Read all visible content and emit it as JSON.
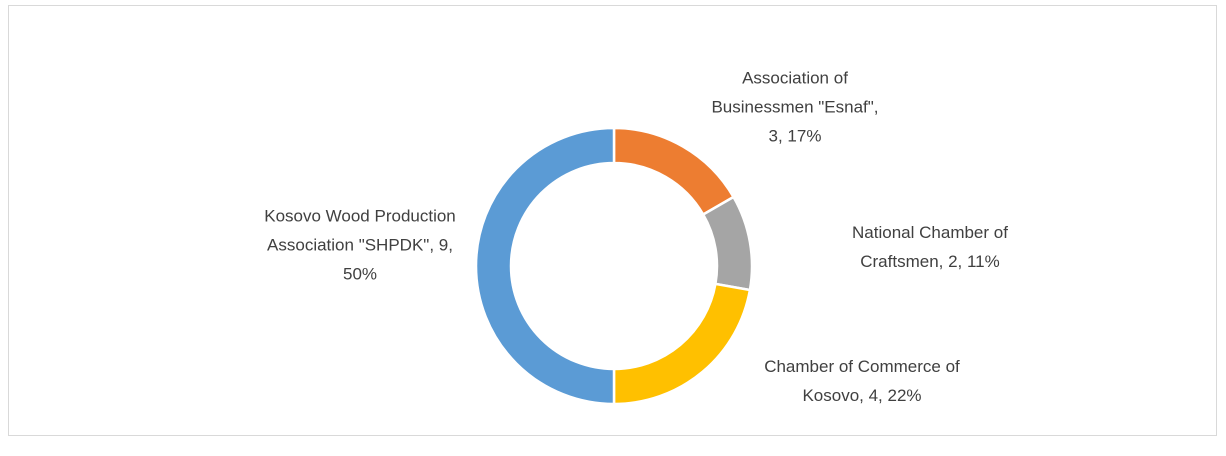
{
  "chart_data": {
    "type": "donut",
    "categories": [
      "Association of Businessmen \"Esnaf\"",
      "National Chamber of Craftsmen",
      "Chamber of Commerce of Kosovo",
      "Kosovo Wood Production Association \"SHPDK\""
    ],
    "values": [
      3,
      2,
      4,
      9
    ],
    "value_labels": [
      "Association of Businessmen \"Esnaf\", 3, 17%",
      "National Chamber of Craftsmen, 2, 11%",
      "Chamber of Commerce of Kosovo, 4, 22%",
      "Kosovo Wood Production Association \"SHPDK\", 9, 50%"
    ],
    "colors": [
      "#ED7D31",
      "#A5A5A5",
      "#FFC000",
      "#5B9BD5"
    ]
  }
}
